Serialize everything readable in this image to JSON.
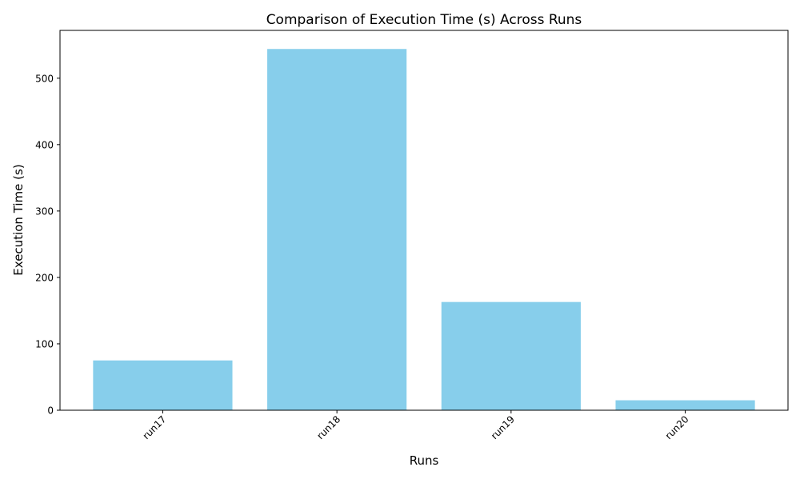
{
  "chart_data": {
    "type": "bar",
    "title": "Comparison of Execution Time (s) Across Runs",
    "xlabel": "Runs",
    "ylabel": "Execution Time (s)",
    "categories": [
      "run17",
      "run18",
      "run19",
      "run20"
    ],
    "values": [
      75,
      544,
      163,
      15
    ],
    "ylim": [
      0,
      572
    ],
    "yticks": [
      0,
      100,
      200,
      300,
      400,
      500
    ],
    "grid": false,
    "legend": "none",
    "bar_color": "#87CEEB",
    "xtick_rotation": 45
  }
}
